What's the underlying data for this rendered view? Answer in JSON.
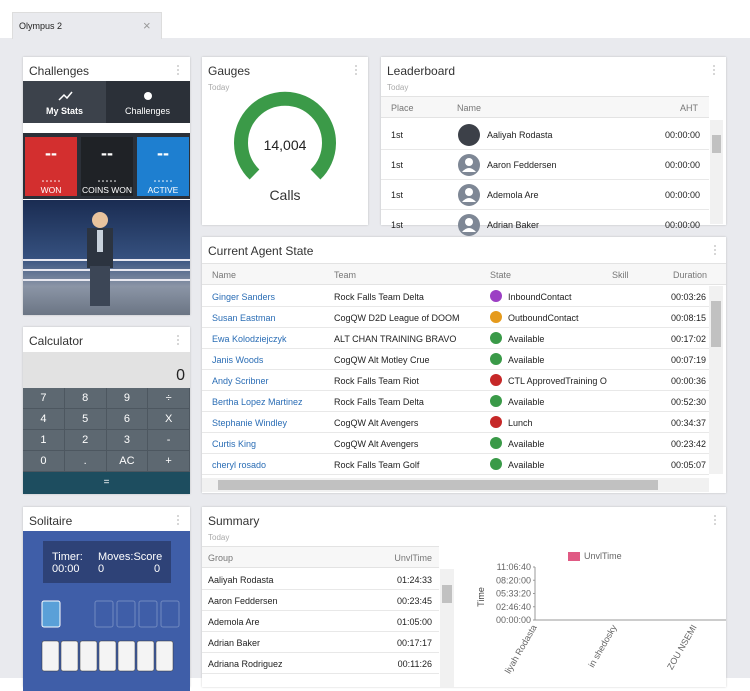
{
  "tab": {
    "title": "Olympus 2",
    "close": "×"
  },
  "challenges": {
    "title": "Challenges",
    "tabs": [
      "My Stats",
      "Challenges"
    ],
    "counters": [
      {
        "value": "--",
        "label": "WON",
        "color": "#d32f2f"
      },
      {
        "value": "--",
        "label": "COINS WON",
        "color": "#1f2226"
      },
      {
        "value": "--",
        "label": "ACTIVE",
        "color": "#1e7fd0"
      }
    ]
  },
  "gauges": {
    "title": "Gauges",
    "subtitle": "Today",
    "value": "14,004",
    "label": "Calls"
  },
  "leaderboard": {
    "title": "Leaderboard",
    "subtitle": "Today",
    "columns": [
      "Place",
      "Name",
      "AHT"
    ],
    "rows": [
      [
        "1st",
        "Aaliyah Rodasta",
        "00:00:00"
      ],
      [
        "1st",
        "Aaron Feddersen",
        "00:00:00"
      ],
      [
        "1st",
        "Ademola Are",
        "00:00:00"
      ],
      [
        "1st",
        "Adrian Baker",
        "00:00:00"
      ]
    ]
  },
  "agent_state": {
    "title": "Current Agent State",
    "columns": [
      "Name",
      "Team",
      "State",
      "Skill",
      "Duration"
    ],
    "rows": [
      {
        "name": "Ginger Sanders",
        "team": "Rock Falls Team Delta",
        "state": "InboundContact",
        "color": "#9c3fc4",
        "duration": "00:03:26"
      },
      {
        "name": "Susan Eastman",
        "team": "CogQW D2D League of DOOM",
        "state": "OutboundContact",
        "color": "#e59a1c",
        "duration": "00:08:15"
      },
      {
        "name": "Ewa Kolodziejczyk",
        "team": "ALT CHAN TRAINING BRAVO",
        "state": "Available",
        "color": "#3a9a48",
        "duration": "00:17:02"
      },
      {
        "name": "Janis Woods",
        "team": "CogQW Alt Motley Crue",
        "state": "Available",
        "color": "#3a9a48",
        "duration": "00:07:19"
      },
      {
        "name": "Andy Scribner",
        "team": "Rock Falls Team Riot",
        "state": "CTL ApprovedTraining O",
        "color": "#c62828",
        "duration": "00:00:36"
      },
      {
        "name": "Bertha Lopez Martinez",
        "team": "Rock Falls Team Delta",
        "state": "Available",
        "color": "#3a9a48",
        "duration": "00:52:30"
      },
      {
        "name": "Stephanie Windley",
        "team": "CogQW Alt Avengers",
        "state": "Lunch",
        "color": "#c62828",
        "duration": "00:34:37"
      },
      {
        "name": "Curtis King",
        "team": "CogQW Alt Avengers",
        "state": "Available",
        "color": "#3a9a48",
        "duration": "00:23:42"
      },
      {
        "name": "cheryl rosado",
        "team": "Rock Falls Team Golf",
        "state": "Available",
        "color": "#3a9a48",
        "duration": "00:05:07"
      }
    ]
  },
  "calculator": {
    "title": "Calculator",
    "display": "0",
    "keys": [
      [
        "7",
        "8",
        "9",
        "÷"
      ],
      [
        "4",
        "5",
        "6",
        "X"
      ],
      [
        "1",
        "2",
        "3",
        "-"
      ],
      [
        "0",
        ".",
        "AC",
        "+"
      ]
    ],
    "equals": "="
  },
  "solitaire": {
    "title": "Solitaire",
    "timer_label": "Timer:",
    "moves_label": "Moves:Score",
    "timer": "00:00",
    "moves": "0",
    "score": "0"
  },
  "summary": {
    "title": "Summary",
    "subtitle": "Today",
    "columns": [
      "Group",
      "UnvlTime"
    ],
    "rows": [
      [
        "Aaliyah Rodasta",
        "01:24:33"
      ],
      [
        "Aaron Feddersen",
        "00:23:45"
      ],
      [
        "Ademola Are",
        "01:05:00"
      ],
      [
        "Adrian Baker",
        "00:17:17"
      ],
      [
        "Adriana Rodriguez",
        "00:11:26"
      ]
    ],
    "chart": {
      "legend": "UnvlTime",
      "color": "#e05a84",
      "ylabel": "Time",
      "ylim": [
        0,
        40000
      ],
      "yticks": [
        {
          "value": 0,
          "label": "00:00:00"
        },
        {
          "value": 10000,
          "label": "02:46:40"
        },
        {
          "value": 20000,
          "label": "05:33:20"
        },
        {
          "value": 30000,
          "label": "08:20:00"
        },
        {
          "value": 40000,
          "label": "11:06:40"
        }
      ],
      "categories": [
        "liyah Rodasta",
        "in shedosky",
        "ZOU NSEMI"
      ]
    }
  }
}
